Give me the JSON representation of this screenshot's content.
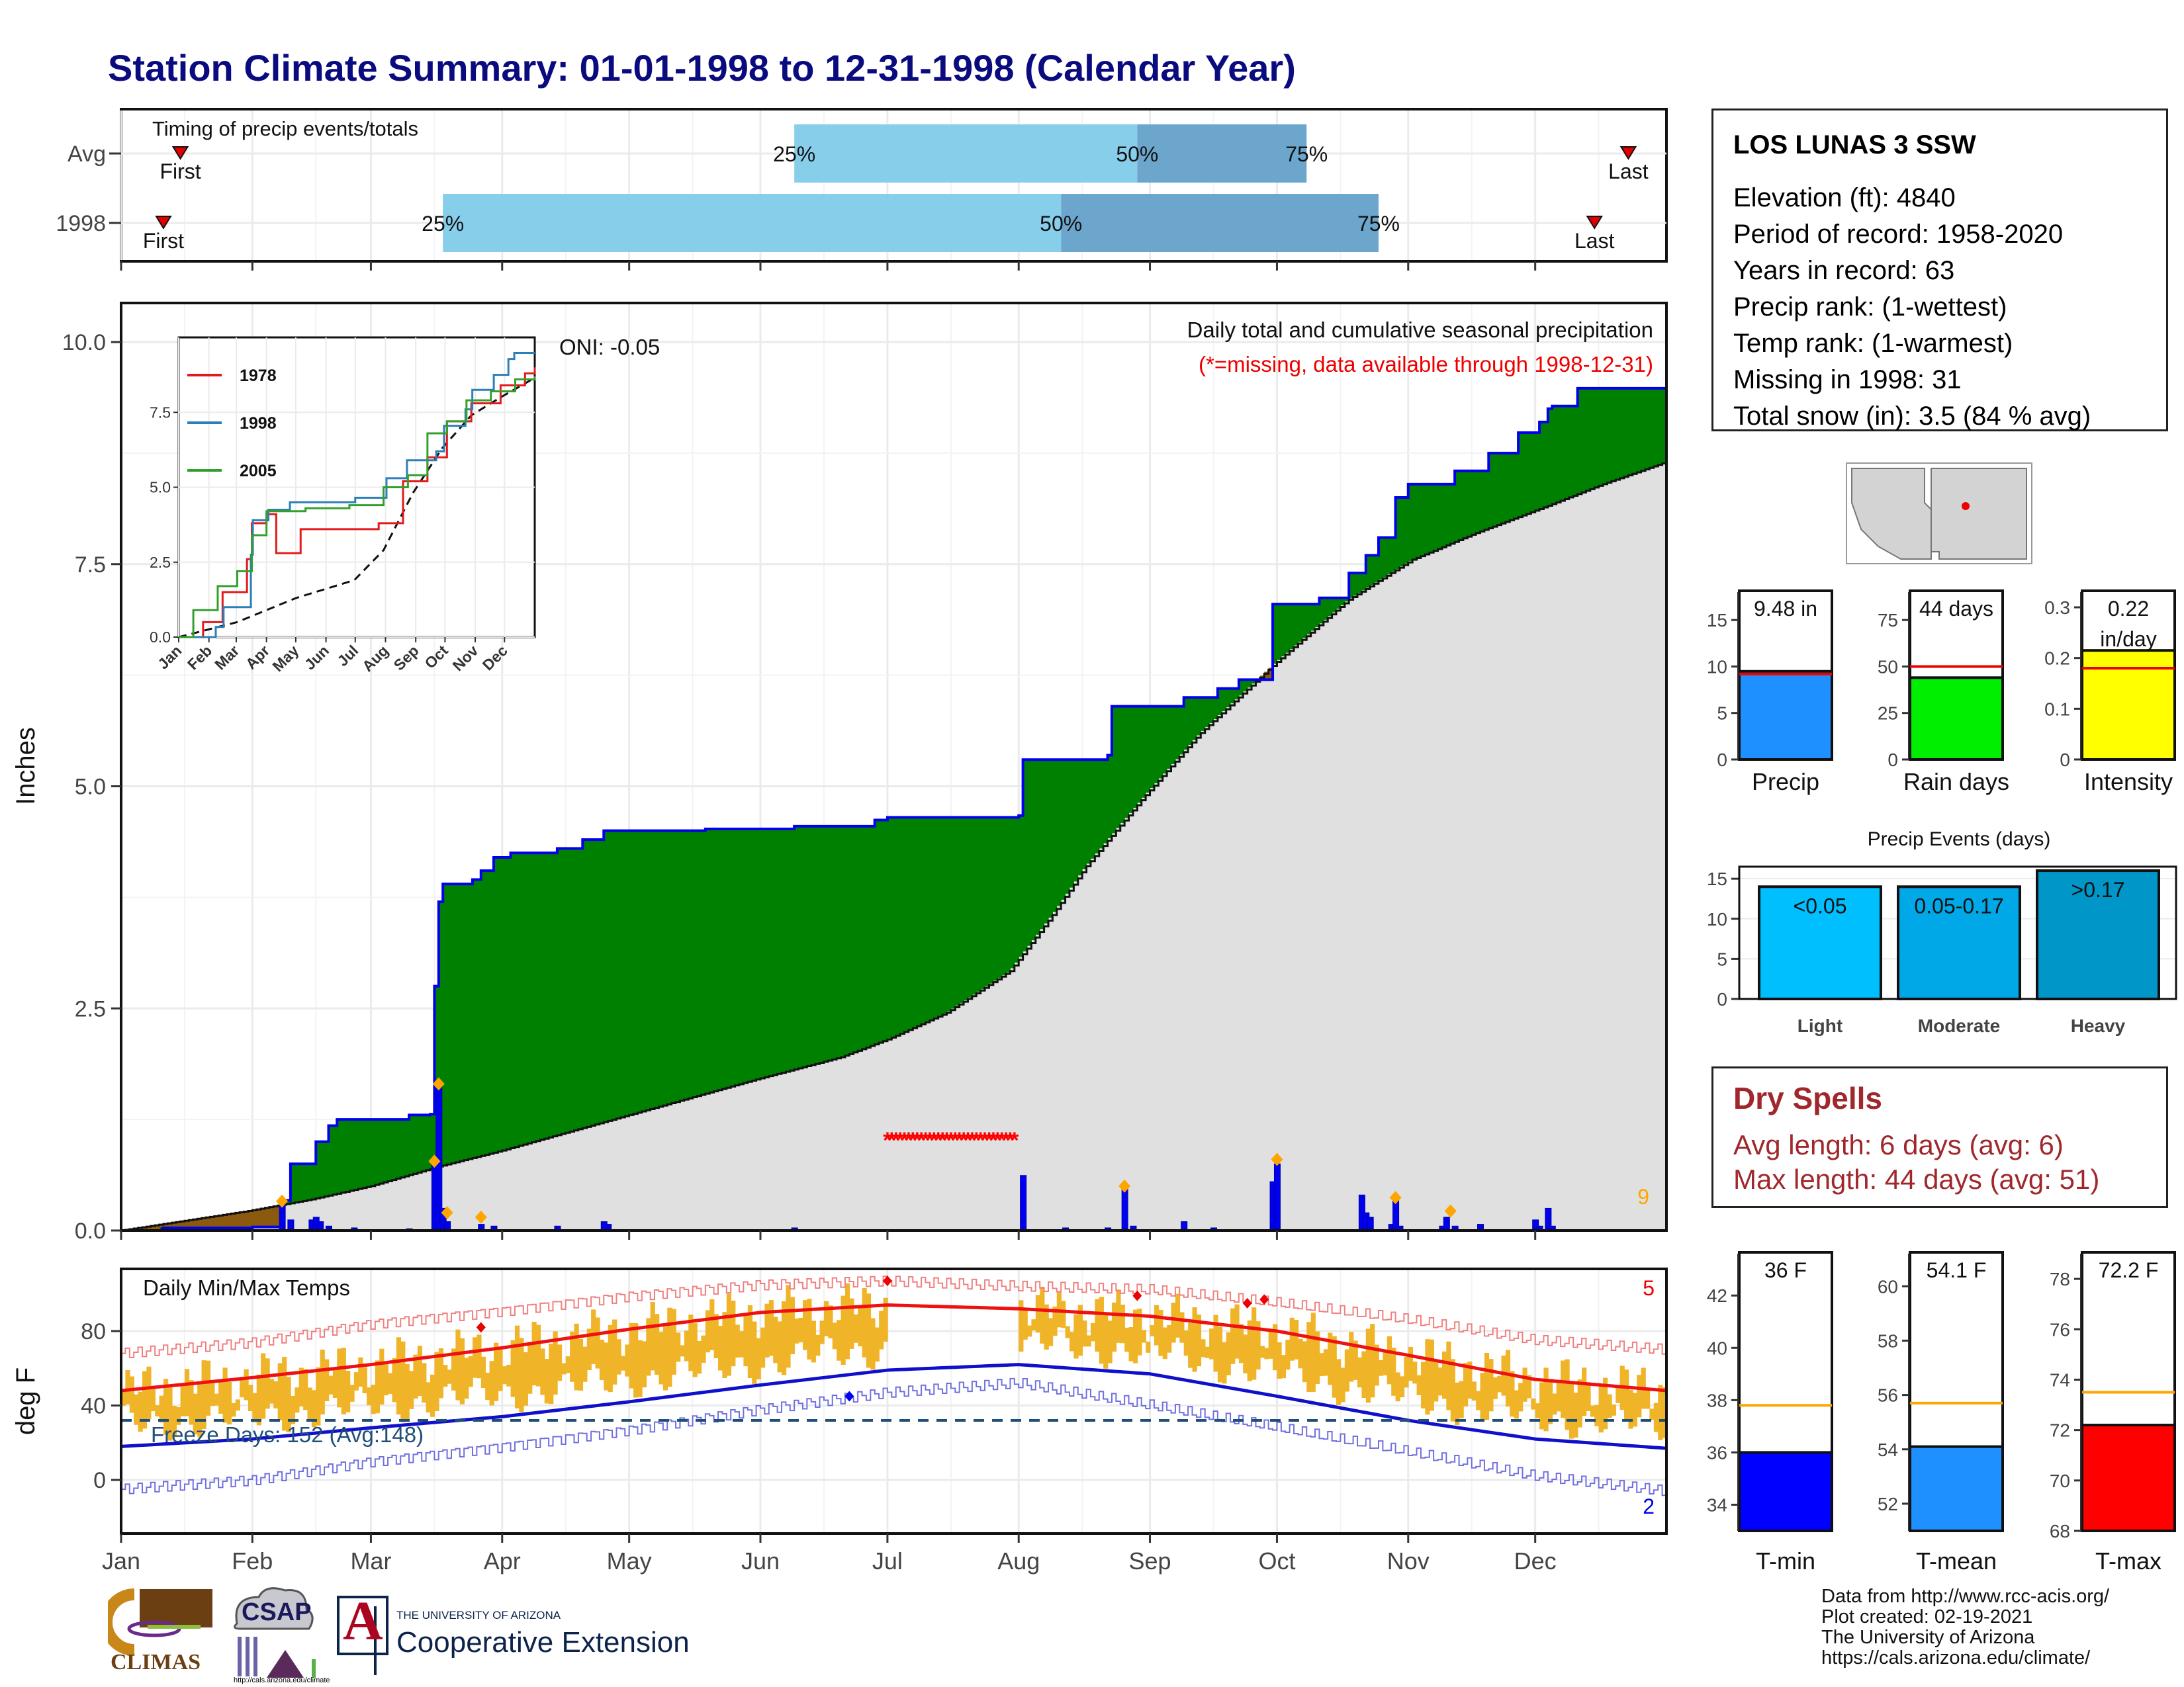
{
  "title": "Station Climate Summary: 01-01-1998 to 12-31-1998 (Calendar Year)",
  "station": {
    "name": "LOS LUNAS 3 SSW",
    "lines": [
      "Elevation (ft): 4840",
      "Period of record: 1958-2020",
      "Years in record: 63",
      "Precip rank:  (1-wettest)",
      "Temp rank:  (1-warmest)",
      "Missing in 1998: 31",
      "Total snow (in): 3.5 (84 % avg)"
    ]
  },
  "dry_spells": {
    "title": "Dry Spells",
    "avg": "Avg length: 6 days (avg: 6)",
    "max": "Max length: 44 days (avg: 51)"
  },
  "credits": [
    "Data from http://www.rcc-acis.org/",
    "Plot created: 02-19-2021",
    "The University of Arizona",
    "https://cals.arizona.edu/climate/"
  ],
  "logos": {
    "climas": "CLIMAS",
    "csap": "CSAP",
    "csap_url": "http://cals.arizona.edu/climate",
    "ua_small": "THE UNIVERSITY OF ARIZONA",
    "ua_big": "Cooperative Extension",
    "ua_letter": "A"
  },
  "colors": {
    "title": "#0b0b80",
    "green_above": "#008000",
    "brown_below": "#8b5a0f",
    "avg_gray": "#e0e0e0",
    "cum_line": "#0000ee",
    "daily_bar": "#0000ee",
    "missing": "#ff0000",
    "temp_bar": "#f0b428",
    "tmax_avg": "#ee1111",
    "tmin_avg": "#1010cc",
    "light": "#00bfff",
    "moderate": "#00a8e8",
    "heavy": "#0096c8"
  },
  "chart_data": [
    {
      "id": "timing",
      "type": "bar",
      "title": "Timing of precip events/totals",
      "categories": [
        "Avg",
        "1998"
      ],
      "series": [
        {
          "name": "Avg",
          "first_day": 14,
          "p25": 159,
          "p50": 240,
          "p75": 280,
          "last_day": 356
        },
        {
          "name": "1998",
          "first_day": 10,
          "p25": 76,
          "p50": 222,
          "p75": 297,
          "last_day": 348
        }
      ],
      "labels": [
        "First",
        "25%",
        "50%",
        "75%",
        "Last"
      ]
    },
    {
      "id": "precip",
      "type": "area",
      "title": "Daily total and cumulative seasonal precipitation",
      "subtitle": "(*=missing, data available through 1998-12-31)",
      "annotation": "ONI: -0.05",
      "ylabel": "Inches",
      "ylim": [
        0,
        10.2
      ],
      "yticks": [
        0.0,
        2.5,
        5.0,
        7.5,
        10.0
      ],
      "corner_count": "9",
      "x_months": [
        "Jan",
        "Feb",
        "Mar",
        "Apr",
        "May",
        "Jun",
        "Jul",
        "Aug",
        "Sep",
        "Oct",
        "Nov",
        "Dec"
      ],
      "cumulative_1998": [
        [
          0,
          0
        ],
        [
          10,
          0.03
        ],
        [
          31,
          0.04
        ],
        [
          38,
          0.34
        ],
        [
          40,
          0.75
        ],
        [
          46,
          1.0
        ],
        [
          49,
          1.18
        ],
        [
          51,
          1.25
        ],
        [
          68,
          1.3
        ],
        [
          73,
          1.31
        ],
        [
          74,
          2.75
        ],
        [
          75,
          3.7
        ],
        [
          76,
          3.9
        ],
        [
          83,
          3.95
        ],
        [
          85,
          4.05
        ],
        [
          88,
          4.2
        ],
        [
          92,
          4.25
        ],
        [
          103,
          4.3
        ],
        [
          109,
          4.4
        ],
        [
          114,
          4.5
        ],
        [
          138,
          4.52
        ],
        [
          159,
          4.55
        ],
        [
          178,
          4.62
        ],
        [
          181,
          4.65
        ],
        [
          212,
          4.67
        ],
        [
          213,
          5.3
        ],
        [
          233,
          5.35
        ],
        [
          234,
          5.9
        ],
        [
          251,
          6.0
        ],
        [
          259,
          6.1
        ],
        [
          264,
          6.2
        ],
        [
          272,
          6.5
        ],
        [
          272,
          7.05
        ],
        [
          283,
          7.12
        ],
        [
          290,
          7.4
        ],
        [
          294,
          7.6
        ],
        [
          297,
          7.8
        ],
        [
          301,
          8.25
        ],
        [
          304,
          8.4
        ],
        [
          315,
          8.55
        ],
        [
          323,
          8.75
        ],
        [
          330,
          8.98
        ],
        [
          335,
          9.1
        ],
        [
          337,
          9.25
        ],
        [
          338,
          9.28
        ],
        [
          344,
          9.48
        ],
        [
          365,
          9.48
        ]
      ],
      "average_cumulative": [
        [
          0,
          0
        ],
        [
          30,
          0.22
        ],
        [
          45,
          0.35
        ],
        [
          59,
          0.5
        ],
        [
          75,
          0.72
        ],
        [
          90,
          0.9
        ],
        [
          120,
          1.3
        ],
        [
          150,
          1.7
        ],
        [
          170,
          1.95
        ],
        [
          181,
          2.15
        ],
        [
          195,
          2.45
        ],
        [
          210,
          2.92
        ],
        [
          220,
          3.55
        ],
        [
          228,
          4.1
        ],
        [
          242,
          4.9
        ],
        [
          255,
          5.6
        ],
        [
          273,
          6.4
        ],
        [
          290,
          7.1
        ],
        [
          305,
          7.55
        ],
        [
          320,
          7.85
        ],
        [
          335,
          8.12
        ],
        [
          350,
          8.4
        ],
        [
          365,
          8.65
        ]
      ],
      "daily_precip": [
        [
          10,
          0.03
        ],
        [
          38,
          0.3
        ],
        [
          40,
          0.12
        ],
        [
          45,
          0.12
        ],
        [
          46,
          0.15
        ],
        [
          47,
          0.1
        ],
        [
          49,
          0.05
        ],
        [
          55,
          0.03
        ],
        [
          68,
          0.02
        ],
        [
          74,
          0.77
        ],
        [
          75,
          1.65
        ],
        [
          76,
          0.25
        ],
        [
          77,
          0.1
        ],
        [
          85,
          0.07
        ],
        [
          88,
          0.05
        ],
        [
          103,
          0.05
        ],
        [
          114,
          0.1
        ],
        [
          115,
          0.07
        ],
        [
          159,
          0.03
        ],
        [
          213,
          0.62
        ],
        [
          223,
          0.03
        ],
        [
          233,
          0.03
        ],
        [
          237,
          0.5
        ],
        [
          239,
          0.05
        ],
        [
          251,
          0.1
        ],
        [
          258,
          0.03
        ],
        [
          272,
          0.55
        ],
        [
          273,
          0.75
        ],
        [
          293,
          0.4
        ],
        [
          294,
          0.2
        ],
        [
          295,
          0.15
        ],
        [
          300,
          0.07
        ],
        [
          301,
          0.35
        ],
        [
          302,
          0.05
        ],
        [
          312,
          0.05
        ],
        [
          313,
          0.15
        ],
        [
          315,
          0.05
        ],
        [
          321,
          0.07
        ],
        [
          334,
          0.12
        ],
        [
          335,
          0.05
        ],
        [
          337,
          0.25
        ],
        [
          338,
          0.05
        ]
      ],
      "highlight_marks": [
        [
          38,
          0.33
        ],
        [
          74,
          0.78
        ],
        [
          75,
          1.65
        ],
        [
          77,
          0.2
        ],
        [
          85,
          0.15
        ],
        [
          237,
          0.5
        ],
        [
          273,
          0.8
        ],
        [
          301,
          0.37
        ],
        [
          314,
          0.22
        ]
      ],
      "missing_range": [
        181,
        211
      ]
    },
    {
      "id": "inset",
      "type": "line",
      "ylim": [
        0,
        10
      ],
      "yticks": [
        0.0,
        2.5,
        5.0,
        7.5
      ],
      "x_months": [
        "Jan",
        "Feb",
        "Mar",
        "Apr",
        "May",
        "Jun",
        "Jul",
        "Aug",
        "Sep",
        "Oct",
        "Nov",
        "Dec"
      ],
      "series": [
        {
          "name": "1978",
          "color": "#e31a1c",
          "values": [
            [
              0,
              0
            ],
            [
              25,
              0.5
            ],
            [
              45,
              1.5
            ],
            [
              70,
              2.6
            ],
            [
              75,
              3.8
            ],
            [
              90,
              4.1
            ],
            [
              100,
              2.8
            ],
            [
              125,
              3.6
            ],
            [
              170,
              3.6
            ],
            [
              205,
              3.8
            ],
            [
              230,
              5.2
            ],
            [
              255,
              6.0
            ],
            [
              275,
              7.2
            ],
            [
              300,
              7.8
            ],
            [
              330,
              8.4
            ],
            [
              355,
              8.8
            ],
            [
              365,
              9.0
            ]
          ]
        },
        {
          "name": "1998",
          "color": "#2c7fb8",
          "values": [
            [
              0,
              0
            ],
            [
              38,
              0.34
            ],
            [
              46,
              1.0
            ],
            [
              74,
              2.75
            ],
            [
              76,
              3.9
            ],
            [
              92,
              4.25
            ],
            [
              114,
              4.5
            ],
            [
              181,
              4.65
            ],
            [
              213,
              5.3
            ],
            [
              234,
              5.9
            ],
            [
              264,
              6.2
            ],
            [
              272,
              7.05
            ],
            [
              294,
              7.6
            ],
            [
              301,
              8.25
            ],
            [
              323,
              8.75
            ],
            [
              338,
              9.28
            ],
            [
              344,
              9.48
            ],
            [
              365,
              9.48
            ]
          ]
        },
        {
          "name": "2005",
          "color": "#33a02c",
          "values": [
            [
              0,
              0
            ],
            [
              15,
              0.9
            ],
            [
              40,
              1.7
            ],
            [
              60,
              2.2
            ],
            [
              75,
              3.4
            ],
            [
              90,
              4.2
            ],
            [
              130,
              4.3
            ],
            [
              175,
              4.4
            ],
            [
              210,
              5.0
            ],
            [
              235,
              5.4
            ],
            [
              255,
              6.8
            ],
            [
              275,
              7.2
            ],
            [
              295,
              7.9
            ],
            [
              320,
              8.2
            ],
            [
              345,
              8.6
            ],
            [
              365,
              8.7
            ]
          ]
        }
      ],
      "average": [
        [
          0,
          0
        ],
        [
          60,
          0.5
        ],
        [
          120,
          1.3
        ],
        [
          180,
          1.9
        ],
        [
          210,
          2.9
        ],
        [
          240,
          4.8
        ],
        [
          270,
          6.3
        ],
        [
          300,
          7.4
        ],
        [
          330,
          8.0
        ],
        [
          365,
          8.65
        ]
      ]
    },
    {
      "id": "temps",
      "type": "bar",
      "title": "Daily Min/Max Temps",
      "ylabel": "deg F",
      "ylim": [
        -28,
        110
      ],
      "yticks": [
        0,
        40,
        80
      ],
      "freeze_label": "Freeze Days: 152 (Avg:148)",
      "freeze_line": 32,
      "max_record_count": "5",
      "min_record_count": "2",
      "avg_tmax": [
        [
          0,
          48
        ],
        [
          31,
          55
        ],
        [
          59,
          62
        ],
        [
          90,
          71
        ],
        [
          120,
          81
        ],
        [
          151,
          90
        ],
        [
          181,
          94
        ],
        [
          212,
          92
        ],
        [
          243,
          88
        ],
        [
          273,
          80
        ],
        [
          304,
          67
        ],
        [
          334,
          54
        ],
        [
          365,
          48
        ]
      ],
      "avg_tmin": [
        [
          0,
          18
        ],
        [
          31,
          22
        ],
        [
          59,
          28
        ],
        [
          90,
          34
        ],
        [
          120,
          42
        ],
        [
          151,
          51
        ],
        [
          181,
          59
        ],
        [
          212,
          62
        ],
        [
          243,
          57
        ],
        [
          273,
          45
        ],
        [
          304,
          32
        ],
        [
          334,
          22
        ],
        [
          365,
          17
        ]
      ],
      "record_high": [
        [
          0,
          68
        ],
        [
          31,
          74
        ],
        [
          59,
          84
        ],
        [
          90,
          91
        ],
        [
          120,
          99
        ],
        [
          151,
          105
        ],
        [
          181,
          107
        ],
        [
          212,
          104
        ],
        [
          243,
          102
        ],
        [
          273,
          95
        ],
        [
          304,
          86
        ],
        [
          334,
          75
        ],
        [
          365,
          70
        ]
      ],
      "record_low": [
        [
          0,
          -5
        ],
        [
          31,
          0
        ],
        [
          59,
          10
        ],
        [
          90,
          18
        ],
        [
          120,
          27
        ],
        [
          151,
          38
        ],
        [
          181,
          47
        ],
        [
          212,
          52
        ],
        [
          243,
          40
        ],
        [
          273,
          28
        ],
        [
          304,
          15
        ],
        [
          334,
          2
        ],
        [
          365,
          -6
        ]
      ],
      "record_marks_high": [
        [
          85,
          82
        ],
        [
          181,
          107
        ],
        [
          240,
          99
        ],
        [
          266,
          95
        ],
        [
          270,
          97
        ]
      ],
      "record_marks_low": [
        [
          172,
          45
        ]
      ],
      "missing_range": [
        181,
        211
      ]
    },
    {
      "id": "season_bars",
      "type": "bar",
      "panels": [
        {
          "label": "Precip",
          "value_text": "9.48 in",
          "value": 9.48,
          "avg": 9.2,
          "ylim": [
            0,
            18
          ],
          "yticks": [
            0,
            5,
            10,
            15
          ],
          "color": "#1e90ff"
        },
        {
          "label": "Rain days",
          "value_text": "44 days",
          "value": 44,
          "avg": 50,
          "ylim": [
            0,
            90
          ],
          "yticks": [
            0,
            25,
            50,
            75
          ],
          "color": "#00ee00"
        },
        {
          "label": "Intensity",
          "value_text": "0.22 in/day",
          "value": 0.215,
          "avg": 0.18,
          "ylim": [
            0,
            0.33
          ],
          "yticks": [
            0.0,
            0.1,
            0.2,
            0.3
          ],
          "color": "#ffff00"
        }
      ]
    },
    {
      "id": "precip_events",
      "type": "bar",
      "title": "Precip Events (days)",
      "categories": [
        "Light",
        "Moderate",
        "Heavy"
      ],
      "bar_labels": [
        "<0.05",
        "0.05-0.17",
        ">0.17"
      ],
      "values": [
        14,
        14,
        16
      ],
      "ylim": [
        0,
        16.5
      ],
      "yticks": [
        0,
        5,
        10,
        15
      ]
    },
    {
      "id": "temp_bars",
      "type": "bar",
      "panels": [
        {
          "label": "T-min",
          "value_text": "36 F",
          "value": 36,
          "avg": 37.8,
          "ylim": [
            33,
            43.6
          ],
          "yticks": [
            34,
            36,
            38,
            40,
            42
          ],
          "color": "#0000ff"
        },
        {
          "label": "T-mean",
          "value_text": "54.1 F",
          "value": 54.1,
          "avg": 55.7,
          "ylim": [
            51,
            61.2
          ],
          "yticks": [
            52,
            54,
            56,
            58,
            60
          ],
          "color": "#1e90ff"
        },
        {
          "label": "T-max",
          "value_text": "72.2 F",
          "value": 72.2,
          "avg": 73.5,
          "ylim": [
            68,
            79
          ],
          "yticks": [
            68,
            70,
            72,
            74,
            76,
            78
          ],
          "color": "#ff0000"
        }
      ]
    }
  ]
}
